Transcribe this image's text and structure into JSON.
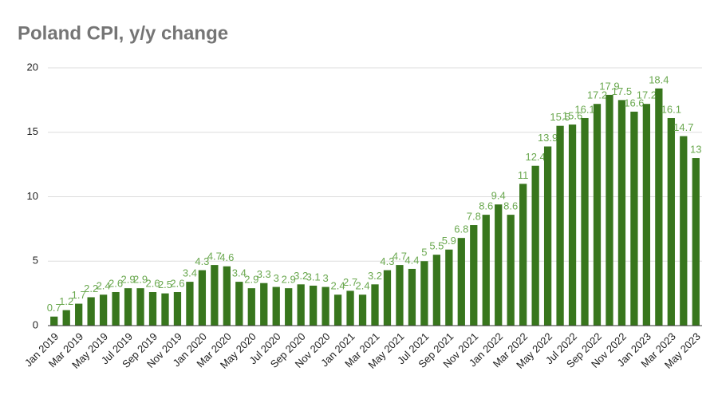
{
  "chart_data": {
    "type": "bar",
    "title": "Poland CPI, y/y change",
    "categories": [
      "Jan 2019",
      null,
      "Mar 2019",
      null,
      "May 2019",
      null,
      "Jul 2019",
      null,
      "Sep 2019",
      null,
      "Nov 2019",
      null,
      "Jan 2020",
      null,
      "Mar 2020",
      null,
      "May 2020",
      null,
      "Jul 2020",
      null,
      "Sep 2020",
      null,
      "Nov 2020",
      null,
      "Jan 2021",
      null,
      "Mar 2021",
      null,
      "May 2021",
      null,
      "Jul 2021",
      null,
      "Sep 2021",
      null,
      "Nov 2021",
      null,
      "Jan 2022",
      null,
      "Mar 2022",
      null,
      "May 2022",
      null,
      "Jul 2022",
      null,
      "Sep 2022",
      null,
      "Nov 2022",
      null,
      "Jan 2023",
      null,
      "Mar 2023",
      null,
      "May 2023"
    ],
    "values": [
      0.7,
      1.2,
      1.7,
      2.2,
      2.4,
      2.6,
      2.9,
      2.9,
      2.6,
      2.5,
      2.6,
      3.4,
      4.3,
      4.7,
      4.6,
      3.4,
      2.9,
      3.3,
      3,
      2.9,
      3.2,
      3.1,
      3,
      2.4,
      2.7,
      2.4,
      3.2,
      4.3,
      4.7,
      4.4,
      5,
      5.5,
      5.9,
      6.8,
      7.8,
      8.6,
      9.4,
      8.6,
      11,
      12.4,
      13.9,
      15.5,
      15.6,
      16.1,
      17.2,
      17.9,
      17.5,
      16.6,
      17.2,
      18.4,
      16.1,
      14.7,
      13
    ],
    "color": "#38761d",
    "label_color": "#6aa84f",
    "ylim": [
      0,
      20
    ],
    "yticks": [
      0,
      5,
      10,
      15,
      20
    ],
    "grid": true
  }
}
